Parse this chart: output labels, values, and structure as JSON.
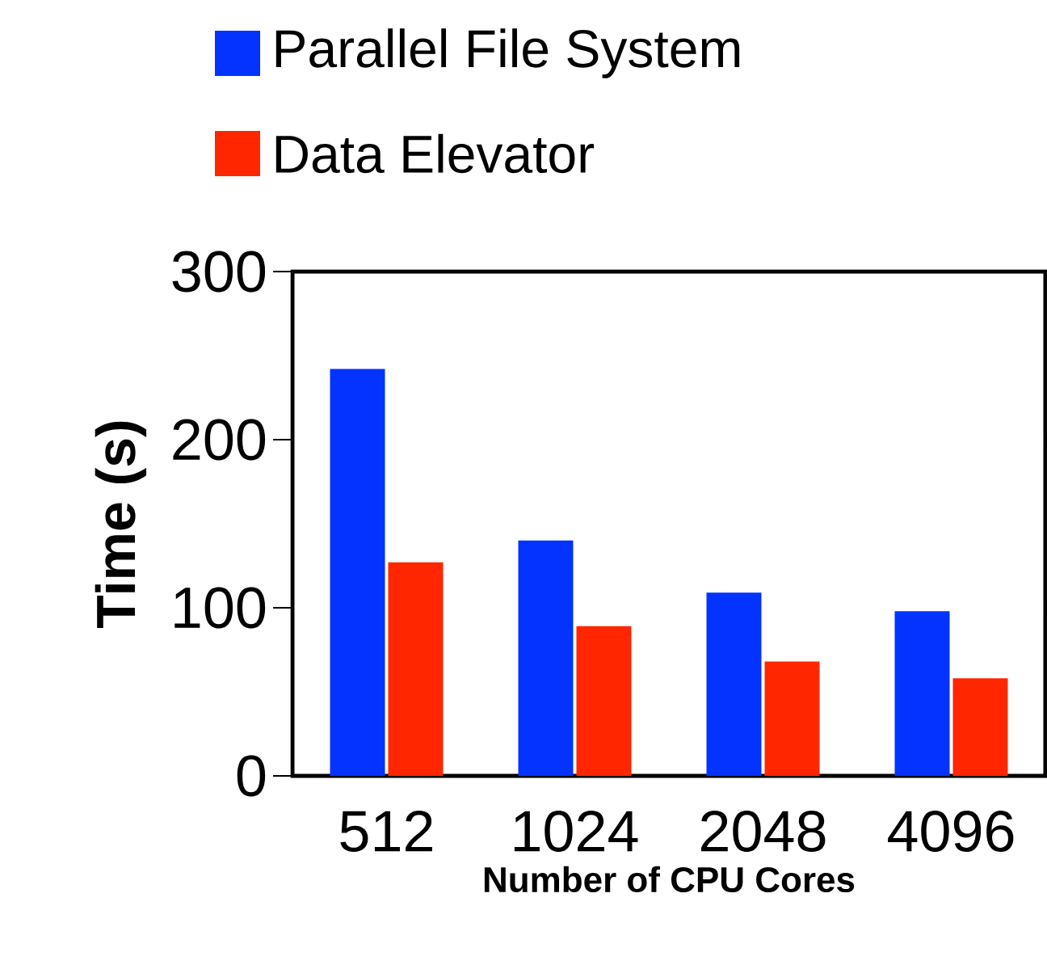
{
  "chart_data": {
    "type": "bar",
    "xlabel": "Number of CPU Cores",
    "ylabel": "Time (s)",
    "categories": [
      "512",
      "1024",
      "2048",
      "4096"
    ],
    "series": [
      {
        "name": "Parallel File System",
        "color": "#0433ff",
        "values": [
          242,
          140,
          109,
          98
        ]
      },
      {
        "name": "Data Elevator",
        "color": "#ff2600",
        "values": [
          127,
          89,
          68,
          58
        ]
      }
    ],
    "ylim": [
      0,
      300
    ],
    "yticks": [
      0,
      100,
      200,
      300
    ],
    "legend": "top"
  }
}
